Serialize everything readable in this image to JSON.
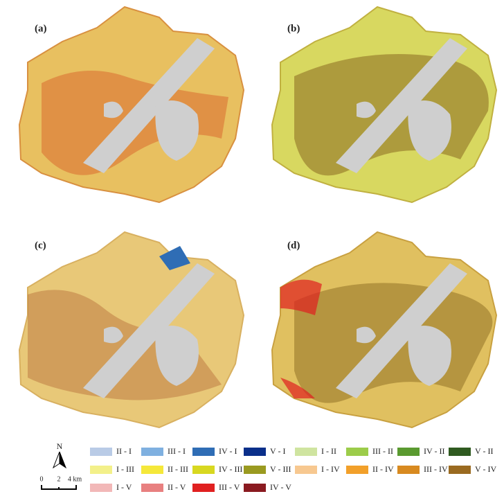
{
  "panels": [
    {
      "label": "(a)"
    },
    {
      "label": "(b)"
    },
    {
      "label": "(c)"
    },
    {
      "label": "(d)"
    }
  ],
  "legend": [
    {
      "name": "II - I",
      "color": "#b9cbe6"
    },
    {
      "name": "III - I",
      "color": "#7fb0e0"
    },
    {
      "name": "IV - I",
      "color": "#2f6db5"
    },
    {
      "name": "V - I",
      "color": "#0a2f8a"
    },
    {
      "name": "I - II",
      "color": "#cfe4a0"
    },
    {
      "name": "III - II",
      "color": "#9ccc4a"
    },
    {
      "name": "IV - II",
      "color": "#5a9a30"
    },
    {
      "name": "V - II",
      "color": "#2f5a20"
    },
    {
      "name": "I - III",
      "color": "#f3f08a"
    },
    {
      "name": "II - III",
      "color": "#f5e83a"
    },
    {
      "name": "IV - III",
      "color": "#d8d820"
    },
    {
      "name": "V - III",
      "color": "#9a9a20"
    },
    {
      "name": "I - IV",
      "color": "#f7c890"
    },
    {
      "name": "II - IV",
      "color": "#f2a02a"
    },
    {
      "name": "III - IV",
      "color": "#d88a20"
    },
    {
      "name": "V - IV",
      "color": "#9a6a20"
    },
    {
      "name": "I - V",
      "color": "#f2b8b8"
    },
    {
      "name": "II - V",
      "color": "#e88080"
    },
    {
      "name": "III - V",
      "color": "#e02020"
    },
    {
      "name": "IV - V",
      "color": "#8a1a20"
    }
  ],
  "north": "N",
  "scale": {
    "labels": [
      "0",
      "2",
      "4 km"
    ]
  }
}
